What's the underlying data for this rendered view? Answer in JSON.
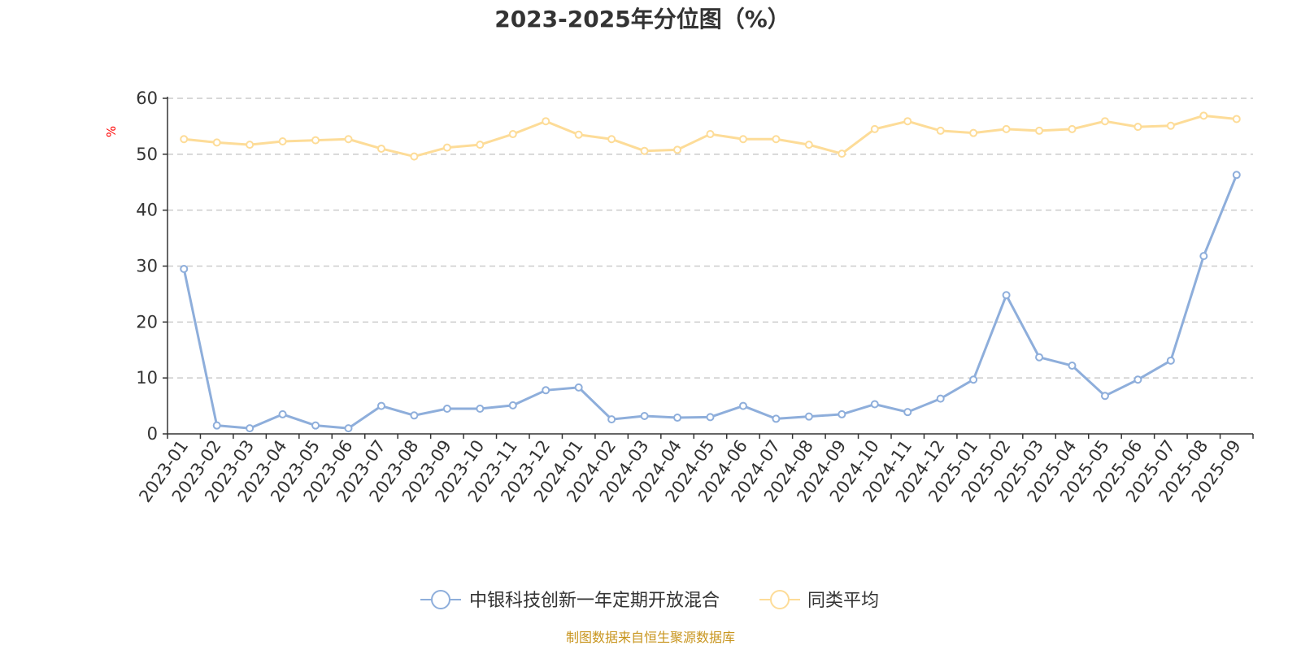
{
  "chart_data": {
    "type": "line",
    "title": "2023-2025年分位图（%）",
    "ylabel": "%",
    "ylim": [
      0,
      60
    ],
    "yticks": [
      0,
      10,
      20,
      30,
      40,
      50,
      60
    ],
    "grid": true,
    "categories": [
      "2023-01",
      "2023-02",
      "2023-03",
      "2023-04",
      "2023-05",
      "2023-06",
      "2023-07",
      "2023-08",
      "2023-09",
      "2023-10",
      "2023-11",
      "2023-12",
      "2024-01",
      "2024-02",
      "2024-03",
      "2024-04",
      "2024-05",
      "2024-06",
      "2024-07",
      "2024-08",
      "2024-09",
      "2024-10",
      "2024-11",
      "2024-12",
      "2025-01",
      "2025-02",
      "2025-03",
      "2025-04",
      "2025-05",
      "2025-06",
      "2025-07",
      "2025-08",
      "2025-09"
    ],
    "series": [
      {
        "name": "中银科技创新一年定期开放混合",
        "color": "#8eaedb",
        "values": [
          29.5,
          1.5,
          1.0,
          3.5,
          1.5,
          1.0,
          5.0,
          3.3,
          4.5,
          4.5,
          5.1,
          7.8,
          8.3,
          2.6,
          3.2,
          2.9,
          3.0,
          5.0,
          2.7,
          3.1,
          3.5,
          5.3,
          3.9,
          6.3,
          9.7,
          24.8,
          13.7,
          12.2,
          6.8,
          9.7,
          13.1,
          31.8,
          46.3
        ]
      },
      {
        "name": "同类平均",
        "color": "#fddc98",
        "values": [
          52.7,
          52.1,
          51.7,
          52.3,
          52.5,
          52.7,
          51.0,
          49.6,
          51.2,
          51.7,
          53.6,
          55.9,
          53.5,
          52.7,
          50.6,
          50.8,
          53.6,
          52.7,
          52.7,
          51.7,
          50.1,
          54.5,
          55.9,
          54.2,
          53.8,
          54.5,
          54.2,
          54.5,
          55.9,
          54.9,
          55.1,
          56.9,
          56.3
        ]
      }
    ],
    "legend_position": "bottom"
  },
  "footer": {
    "source": "制图数据来自恒生聚源数据库",
    "source_color": "#c8951e"
  }
}
